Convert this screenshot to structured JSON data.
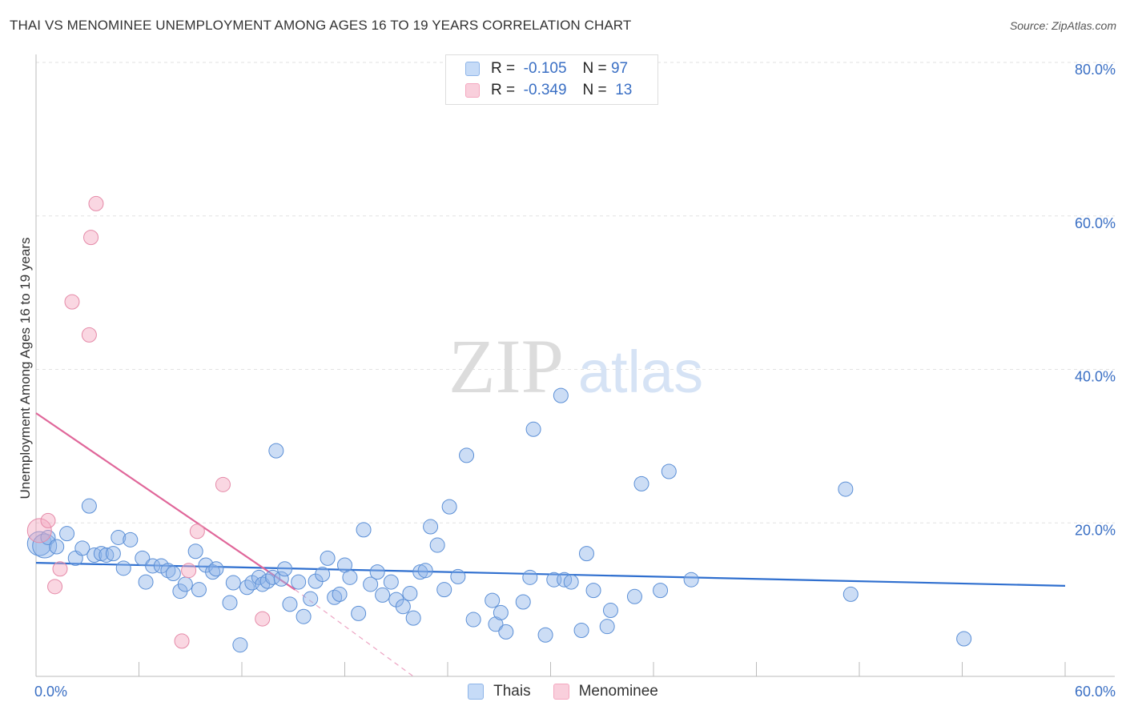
{
  "title": "THAI VS MENOMINEE UNEMPLOYMENT AMONG AGES 16 TO 19 YEARS CORRELATION CHART",
  "source": "Source: ZipAtlas.com",
  "watermark": {
    "zip": "ZIP",
    "atlas": "atlas"
  },
  "legend": {
    "rows": [
      {
        "r_label": "R =",
        "r_value": "-0.105",
        "n_label": "N =",
        "n_value": "97",
        "color": "#8db4e8"
      },
      {
        "r_label": "R =",
        "r_value": "-0.349",
        "n_label": "N =",
        "n_value": "13",
        "color": "#f4a7bf"
      }
    ]
  },
  "chart_data": {
    "type": "scatter",
    "title": "THAI VS MENOMINEE UNEMPLOYMENT AMONG AGES 16 TO 19 YEARS CORRELATION CHART",
    "xlabel": "",
    "ylabel": "Unemployment Among Ages 16 to 19 years",
    "xlim": [
      0,
      60
    ],
    "ylim": [
      0,
      80
    ],
    "x_tick_labels": [
      "0.0%",
      "60.0%"
    ],
    "y_tick_labels": [
      {
        "value": 20,
        "label": "20.0%"
      },
      {
        "value": 40,
        "label": "40.0%"
      },
      {
        "value": 60,
        "label": "60.0%"
      },
      {
        "value": 80,
        "label": "80.0%"
      }
    ],
    "series": [
      {
        "name": "Thais",
        "color": "#8db4e8",
        "stroke": "#5b8fd6",
        "trend": {
          "x": [
            0,
            60
          ],
          "y": [
            14.8,
            11.8
          ],
          "color": "#2f6fcf"
        },
        "points": [
          [
            0.2,
            17.3,
            2
          ],
          [
            0.5,
            17.0,
            2
          ],
          [
            0.7,
            18.1,
            1
          ],
          [
            1.2,
            16.9,
            1
          ],
          [
            1.8,
            18.6,
            1
          ],
          [
            2.3,
            15.4,
            1
          ],
          [
            2.7,
            16.7,
            1
          ],
          [
            3.1,
            22.2,
            1
          ],
          [
            3.4,
            15.8,
            1
          ],
          [
            3.8,
            16.0,
            1
          ],
          [
            4.1,
            15.8,
            1
          ],
          [
            4.5,
            16.0,
            1
          ],
          [
            4.8,
            18.1,
            1
          ],
          [
            5.1,
            14.1,
            1
          ],
          [
            5.5,
            17.8,
            1
          ],
          [
            6.2,
            15.4,
            1
          ],
          [
            6.4,
            12.3,
            1
          ],
          [
            6.8,
            14.4,
            1
          ],
          [
            7.3,
            14.4,
            1
          ],
          [
            7.7,
            13.8,
            1
          ],
          [
            8.0,
            13.4,
            1
          ],
          [
            8.4,
            11.1,
            1
          ],
          [
            8.7,
            12.0,
            1
          ],
          [
            9.3,
            16.3,
            1
          ],
          [
            9.5,
            11.3,
            1
          ],
          [
            9.9,
            14.5,
            1
          ],
          [
            10.3,
            13.6,
            1
          ],
          [
            10.5,
            14.0,
            1
          ],
          [
            11.3,
            9.6,
            1
          ],
          [
            11.5,
            12.2,
            1
          ],
          [
            11.9,
            4.1,
            1
          ],
          [
            12.3,
            11.6,
            1
          ],
          [
            12.6,
            12.2,
            1
          ],
          [
            13.0,
            12.9,
            1
          ],
          [
            13.2,
            12.0,
            1
          ],
          [
            13.5,
            12.4,
            1
          ],
          [
            13.8,
            12.9,
            1
          ],
          [
            14.0,
            29.4,
            1
          ],
          [
            14.3,
            12.7,
            1
          ],
          [
            14.5,
            14.0,
            1
          ],
          [
            14.8,
            9.4,
            1
          ],
          [
            15.3,
            12.3,
            1
          ],
          [
            15.6,
            7.8,
            1
          ],
          [
            16.0,
            10.1,
            1
          ],
          [
            16.3,
            12.4,
            1
          ],
          [
            16.7,
            13.3,
            1
          ],
          [
            17.0,
            15.4,
            1
          ],
          [
            17.4,
            10.3,
            1
          ],
          [
            17.7,
            10.7,
            1
          ],
          [
            18.0,
            14.5,
            1
          ],
          [
            18.3,
            12.9,
            1
          ],
          [
            18.8,
            8.2,
            1
          ],
          [
            19.1,
            19.1,
            1
          ],
          [
            19.5,
            12.0,
            1
          ],
          [
            19.9,
            13.6,
            1
          ],
          [
            20.2,
            10.6,
            1
          ],
          [
            20.7,
            12.3,
            1
          ],
          [
            21.0,
            10.0,
            1
          ],
          [
            21.4,
            9.1,
            1
          ],
          [
            21.8,
            10.8,
            1
          ],
          [
            22.0,
            7.6,
            1
          ],
          [
            22.4,
            13.6,
            1
          ],
          [
            22.7,
            13.8,
            1
          ],
          [
            23.0,
            19.5,
            1
          ],
          [
            23.4,
            17.1,
            1
          ],
          [
            23.8,
            11.3,
            1
          ],
          [
            24.1,
            22.1,
            1
          ],
          [
            24.6,
            13.0,
            1
          ],
          [
            25.1,
            28.8,
            1
          ],
          [
            25.5,
            7.4,
            1
          ],
          [
            26.6,
            9.9,
            1
          ],
          [
            26.8,
            6.8,
            1
          ],
          [
            27.1,
            8.3,
            1
          ],
          [
            27.4,
            5.8,
            1
          ],
          [
            28.4,
            9.7,
            1
          ],
          [
            28.8,
            12.9,
            1
          ],
          [
            29.0,
            32.2,
            1
          ],
          [
            29.7,
            5.4,
            1
          ],
          [
            30.2,
            12.6,
            1
          ],
          [
            30.8,
            12.6,
            1
          ],
          [
            30.6,
            36.6,
            1
          ],
          [
            31.2,
            12.3,
            1
          ],
          [
            31.8,
            6.0,
            1
          ],
          [
            32.1,
            16.0,
            1
          ],
          [
            32.5,
            11.2,
            1
          ],
          [
            33.3,
            6.5,
            1
          ],
          [
            33.5,
            8.6,
            1
          ],
          [
            34.9,
            10.4,
            1
          ],
          [
            35.3,
            25.1,
            1
          ],
          [
            36.4,
            11.2,
            1
          ],
          [
            36.9,
            26.7,
            1
          ],
          [
            38.2,
            12.6,
            1
          ],
          [
            47.2,
            24.4,
            1
          ],
          [
            47.5,
            10.7,
            1
          ],
          [
            54.1,
            4.9,
            1
          ]
        ]
      },
      {
        "name": "Menominee",
        "color": "#f4a7bf",
        "stroke": "#e58aa8",
        "trend": {
          "x": [
            0,
            15.1
          ],
          "y": [
            34.3,
            11.3
          ],
          "color": "#e0679a",
          "dash_to": [
            22.0,
            0
          ]
        },
        "points": [
          [
            0.2,
            19.0,
            2
          ],
          [
            0.7,
            20.3,
            1
          ],
          [
            1.1,
            11.7,
            1
          ],
          [
            1.4,
            14.0,
            1
          ],
          [
            2.1,
            48.8,
            1
          ],
          [
            3.1,
            44.5,
            1
          ],
          [
            3.2,
            57.2,
            1
          ],
          [
            3.5,
            61.6,
            1
          ],
          [
            8.5,
            4.6,
            1
          ],
          [
            8.9,
            13.8,
            1
          ],
          [
            9.4,
            18.9,
            1
          ],
          [
            10.9,
            25.0,
            1
          ],
          [
            13.2,
            7.5,
            1
          ]
        ]
      }
    ]
  },
  "bottom_legend": [
    {
      "label": "Thais",
      "color": "#8db4e8"
    },
    {
      "label": "Menominee",
      "color": "#f4a7bf"
    }
  ]
}
